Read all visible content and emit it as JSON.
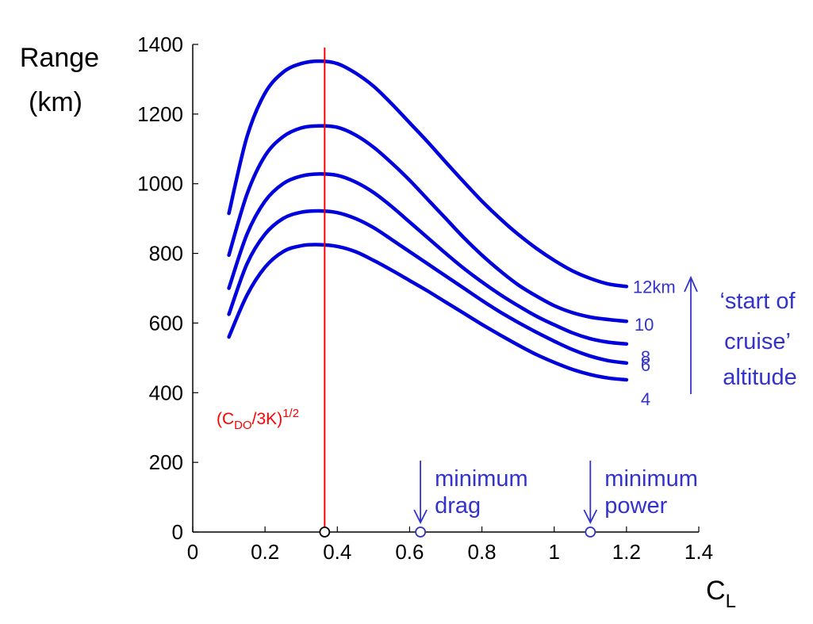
{
  "chart_data": {
    "type": "line",
    "title": "",
    "xlabel": "C",
    "xlabel_sub": "L",
    "ylabel_lines": [
      "Range",
      "(km)"
    ],
    "xlim": [
      0,
      1.4
    ],
    "ylim": [
      0,
      1400
    ],
    "x_ticks": [
      0,
      0.2,
      0.4,
      0.6,
      0.8,
      1,
      1.2,
      1.4
    ],
    "x_tick_labels": [
      "0",
      "0.2",
      "0.4",
      "0.6",
      "0.8",
      "1",
      "1.2",
      "1.4"
    ],
    "y_ticks": [
      0,
      200,
      400,
      600,
      800,
      1000,
      1200,
      1400
    ],
    "y_tick_labels": [
      "0",
      "200",
      "400",
      "600",
      "800",
      "1000",
      "1200",
      "1400"
    ],
    "grid": false,
    "x": [
      0.1,
      0.15,
      0.2,
      0.25,
      0.3,
      0.35,
      0.4,
      0.45,
      0.5,
      0.55,
      0.6,
      0.65,
      0.7,
      0.75,
      0.8,
      0.85,
      0.9,
      0.95,
      1.0,
      1.05,
      1.1,
      1.15,
      1.2
    ],
    "series": [
      {
        "name": "12km",
        "values": [
          915,
          1135,
          1260,
          1320,
          1345,
          1352,
          1345,
          1318,
          1280,
          1230,
          1175,
          1120,
          1062,
          1005,
          950,
          900,
          855,
          815,
          780,
          750,
          728,
          712,
          705
        ]
      },
      {
        "name": "10",
        "values": [
          795,
          970,
          1080,
          1135,
          1160,
          1166,
          1162,
          1140,
          1105,
          1060,
          1010,
          955,
          900,
          845,
          795,
          750,
          710,
          678,
          650,
          630,
          617,
          610,
          605
        ]
      },
      {
        "name": "8",
        "values": [
          700,
          855,
          950,
          1000,
          1022,
          1028,
          1024,
          1005,
          975,
          935,
          890,
          845,
          800,
          757,
          718,
          682,
          650,
          620,
          595,
          572,
          555,
          545,
          540
        ]
      },
      {
        "name": "6",
        "values": [
          625,
          770,
          855,
          900,
          918,
          922,
          917,
          900,
          874,
          840,
          805,
          770,
          735,
          700,
          665,
          632,
          602,
          574,
          548,
          524,
          505,
          492,
          485
        ]
      },
      {
        "name": "4",
        "values": [
          560,
          680,
          760,
          805,
          822,
          825,
          820,
          805,
          780,
          752,
          722,
          692,
          660,
          628,
          596,
          566,
          537,
          510,
          487,
          467,
          452,
          442,
          437
        ]
      }
    ],
    "series_color": "#0000dd",
    "vline": {
      "x": 0.365,
      "label_base": "(C",
      "label_sub": "DO",
      "label_mid": "/3K)",
      "label_sup": "1/2",
      "color": "#ff0000"
    },
    "markers": [
      {
        "x": 0.365,
        "y": 0,
        "color": "#000000"
      },
      {
        "x": 0.63,
        "y": 0,
        "color": "#3333bb"
      },
      {
        "x": 1.1,
        "y": 0,
        "color": "#3333bb"
      }
    ],
    "annotations": [
      {
        "lines": [
          "minimum",
          "drag"
        ],
        "arrow_x": 0.63,
        "color": "#3333cc"
      },
      {
        "lines": [
          "minimum",
          "power"
        ],
        "arrow_x": 1.1,
        "color": "#3333cc"
      }
    ],
    "altitude_note": {
      "lines": [
        "‘start of",
        "cruise’",
        "altitude"
      ],
      "color": "#3333cc"
    }
  }
}
